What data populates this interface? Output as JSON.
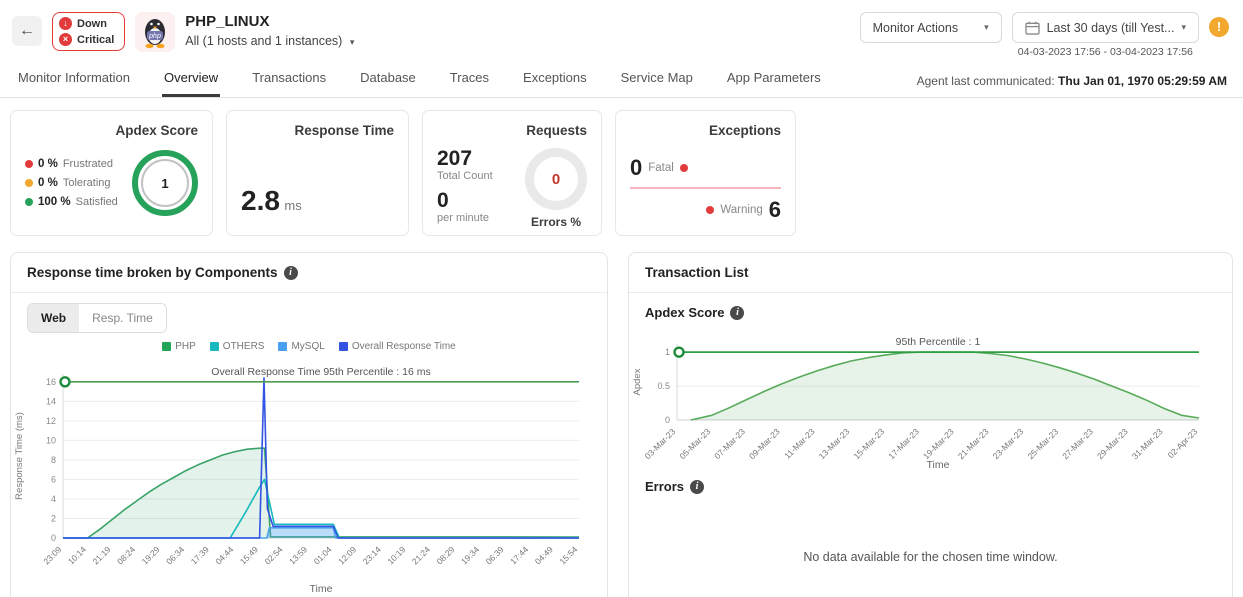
{
  "icons": {
    "back": "←",
    "caret": "▾",
    "down_arrow": "↓",
    "close": "×",
    "info": "i",
    "alert": "!"
  },
  "colors": {
    "red": "#e23b3b",
    "orange": "#f2a72e",
    "green": "#27a25b",
    "teal": "#17b8be",
    "blue_light": "#4aa0ee",
    "blue": "#3353e3",
    "percentile_green": "#4d9e53",
    "exception_line": "#f6b6bb"
  },
  "header": {
    "status": {
      "availability": "Down",
      "health": "Critical"
    },
    "title": "PHP_LINUX",
    "host_selector": "All (1 hosts and 1 instances)",
    "monitor_actions_label": "Monitor Actions",
    "time_range_label": "Last 30 days (till Yest...",
    "time_range_detail": "04-03-2023 17:56 - 03-04-2023 17:56",
    "agent_label": "Agent last communicated:",
    "agent_value": "Thu Jan 01, 1970 05:29:59 AM"
  },
  "tabs": [
    {
      "label": "Monitor Information"
    },
    {
      "label": "Overview"
    },
    {
      "label": "Transactions"
    },
    {
      "label": "Database"
    },
    {
      "label": "Traces"
    },
    {
      "label": "Exceptions"
    },
    {
      "label": "Service Map"
    },
    {
      "label": "App Parameters"
    }
  ],
  "cards": {
    "apdex": {
      "title": "Apdex Score",
      "legend": [
        {
          "pct": "0 %",
          "label": "Frustrated",
          "color": "#e23b3b"
        },
        {
          "pct": "0 %",
          "label": "Tolerating",
          "color": "#f2a72e"
        },
        {
          "pct": "100 %",
          "label": "Satisfied",
          "color": "#27a25b"
        }
      ],
      "gauge_value": "1"
    },
    "response_time": {
      "title": "Response Time",
      "value": "2.8",
      "unit": "ms"
    },
    "requests": {
      "title": "Requests",
      "total": "207",
      "total_label": "Total Count",
      "per_minute": "0",
      "per_minute_label": "per minute",
      "errors_value": "0",
      "errors_label": "Errors %"
    },
    "exceptions": {
      "title": "Exceptions",
      "fatal_value": "0",
      "fatal_label": "Fatal",
      "warning_label": "Warning",
      "warning_value": "6"
    }
  },
  "panels": {
    "components": {
      "title": "Response time broken by Components",
      "toggles": [
        {
          "label": "Web"
        },
        {
          "label": "Resp. Time"
        }
      ],
      "active_toggle": "Web"
    },
    "transactions": {
      "title": "Transaction List",
      "apdex_title": "Apdex Score",
      "errors_title": "Errors",
      "no_data": "No data available for the chosen time window."
    }
  },
  "chart_data": [
    {
      "type": "area",
      "title": "Overall Response Time 95th Percentile : 16 ms",
      "xlabel": "Time",
      "ylabel": "Response Time (ms)",
      "ylim": [
        0,
        16.8
      ],
      "yticks": [
        0,
        2,
        4,
        6,
        8,
        10,
        12,
        14,
        16
      ],
      "x_categories": [
        "23:09",
        "10:14",
        "21:19",
        "08:24",
        "19:29",
        "06:34",
        "17:39",
        "04:44",
        "15:49",
        "02:54",
        "13:59",
        "01:04",
        "12:09",
        "23:14",
        "10:19",
        "21:24",
        "08:29",
        "19:34",
        "06:39",
        "17:44",
        "04:49",
        "15:54"
      ],
      "percentile": {
        "value": 16,
        "label": "Overall Response Time 95th Percentile : 16 ms",
        "color": "#4d9e53"
      },
      "legend": [
        {
          "name": "PHP",
          "color": "#21a558"
        },
        {
          "name": "OTHERS",
          "color": "#17b8be"
        },
        {
          "name": "MySQL",
          "color": "#4aa0ee"
        },
        {
          "name": "Overall Response Time",
          "color": "#3353e3"
        }
      ],
      "series": [
        {
          "name": "PHP",
          "color": "#3aa367",
          "fill": true,
          "fillOpacity": 0.14,
          "points": [
            [
              0,
              0
            ],
            [
              1,
              0
            ],
            [
              1.5,
              0.9
            ],
            [
              2,
              1.9
            ],
            [
              2.5,
              2.9
            ],
            [
              3,
              3.8
            ],
            [
              3.5,
              4.7
            ],
            [
              4,
              5.5
            ],
            [
              4.5,
              6.2
            ],
            [
              5,
              6.9
            ],
            [
              5.5,
              7.5
            ],
            [
              6,
              8.0
            ],
            [
              6.5,
              8.5
            ],
            [
              7,
              8.85
            ],
            [
              7.5,
              9.1
            ],
            [
              8,
              9.2
            ],
            [
              8.2,
              9.2
            ],
            [
              8.45,
              0.12
            ],
            [
              21,
              0.1
            ]
          ]
        },
        {
          "name": "OTHERS",
          "color": "#17b8be",
          "fill": false,
          "fillOpacity": 0,
          "points": [
            [
              0,
              0
            ],
            [
              6.8,
              0
            ],
            [
              7.4,
              2.5
            ],
            [
              8,
              5.2
            ],
            [
              8.2,
              6.0
            ],
            [
              8.6,
              1.4
            ],
            [
              11,
              1.4
            ],
            [
              11.25,
              0
            ],
            [
              21,
              0
            ]
          ]
        },
        {
          "name": "MySQL",
          "color": "#4aa0ee",
          "fill": true,
          "fillOpacity": 0.38,
          "points": [
            [
              0,
              0
            ],
            [
              8.3,
              0
            ],
            [
              8.4,
              1.05
            ],
            [
              11,
              1.05
            ],
            [
              11.1,
              0
            ],
            [
              21,
              0
            ]
          ]
        },
        {
          "name": "Overall Response Time",
          "color": "#3353e3",
          "fill": false,
          "fillOpacity": 0,
          "points": [
            [
              0,
              0
            ],
            [
              8.0,
              0
            ],
            [
              8.18,
              16.4
            ],
            [
              8.32,
              3
            ],
            [
              8.55,
              1.2
            ],
            [
              11,
              1.2
            ],
            [
              11.2,
              0
            ],
            [
              21,
              0
            ]
          ]
        }
      ]
    },
    {
      "type": "area",
      "title": "95th Percentile : 1",
      "xlabel": "Time",
      "ylabel": "Apdex",
      "ylim": [
        0,
        1.12
      ],
      "yticks": [
        0,
        0.5,
        1
      ],
      "x_categories": [
        "03-Mar-23",
        "05-Mar-23",
        "07-Mar-23",
        "09-Mar-23",
        "11-Mar-23",
        "13-Mar-23",
        "15-Mar-23",
        "17-Mar-23",
        "19-Mar-23",
        "21-Mar-23",
        "23-Mar-23",
        "25-Mar-23",
        "27-Mar-23",
        "29-Mar-23",
        "31-Mar-23",
        "02-Apr-23"
      ],
      "percentile": {
        "value": 1,
        "label": "95th Percentile : 1",
        "color": "#2e9e44"
      },
      "legend": [],
      "series": [
        {
          "name": "Apdex",
          "color": "#57ab5a",
          "fill": true,
          "fillOpacity": 0.14,
          "points": [
            [
              0.4,
              0
            ],
            [
              1,
              0.07
            ],
            [
              1.5,
              0.18
            ],
            [
              2,
              0.3
            ],
            [
              2.5,
              0.42
            ],
            [
              3,
              0.53
            ],
            [
              3.5,
              0.63
            ],
            [
              4,
              0.72
            ],
            [
              4.5,
              0.8
            ],
            [
              5,
              0.87
            ],
            [
              5.5,
              0.92
            ],
            [
              6,
              0.96
            ],
            [
              6.5,
              0.99
            ],
            [
              7,
              1
            ],
            [
              8.5,
              1
            ],
            [
              9,
              0.98
            ],
            [
              9.5,
              0.95
            ],
            [
              10,
              0.9
            ],
            [
              10.5,
              0.84
            ],
            [
              11,
              0.77
            ],
            [
              11.5,
              0.69
            ],
            [
              12,
              0.6
            ],
            [
              12.5,
              0.5
            ],
            [
              13,
              0.4
            ],
            [
              13.5,
              0.29
            ],
            [
              14,
              0.17
            ],
            [
              14.5,
              0.07
            ],
            [
              15,
              0.03
            ]
          ]
        }
      ]
    }
  ]
}
